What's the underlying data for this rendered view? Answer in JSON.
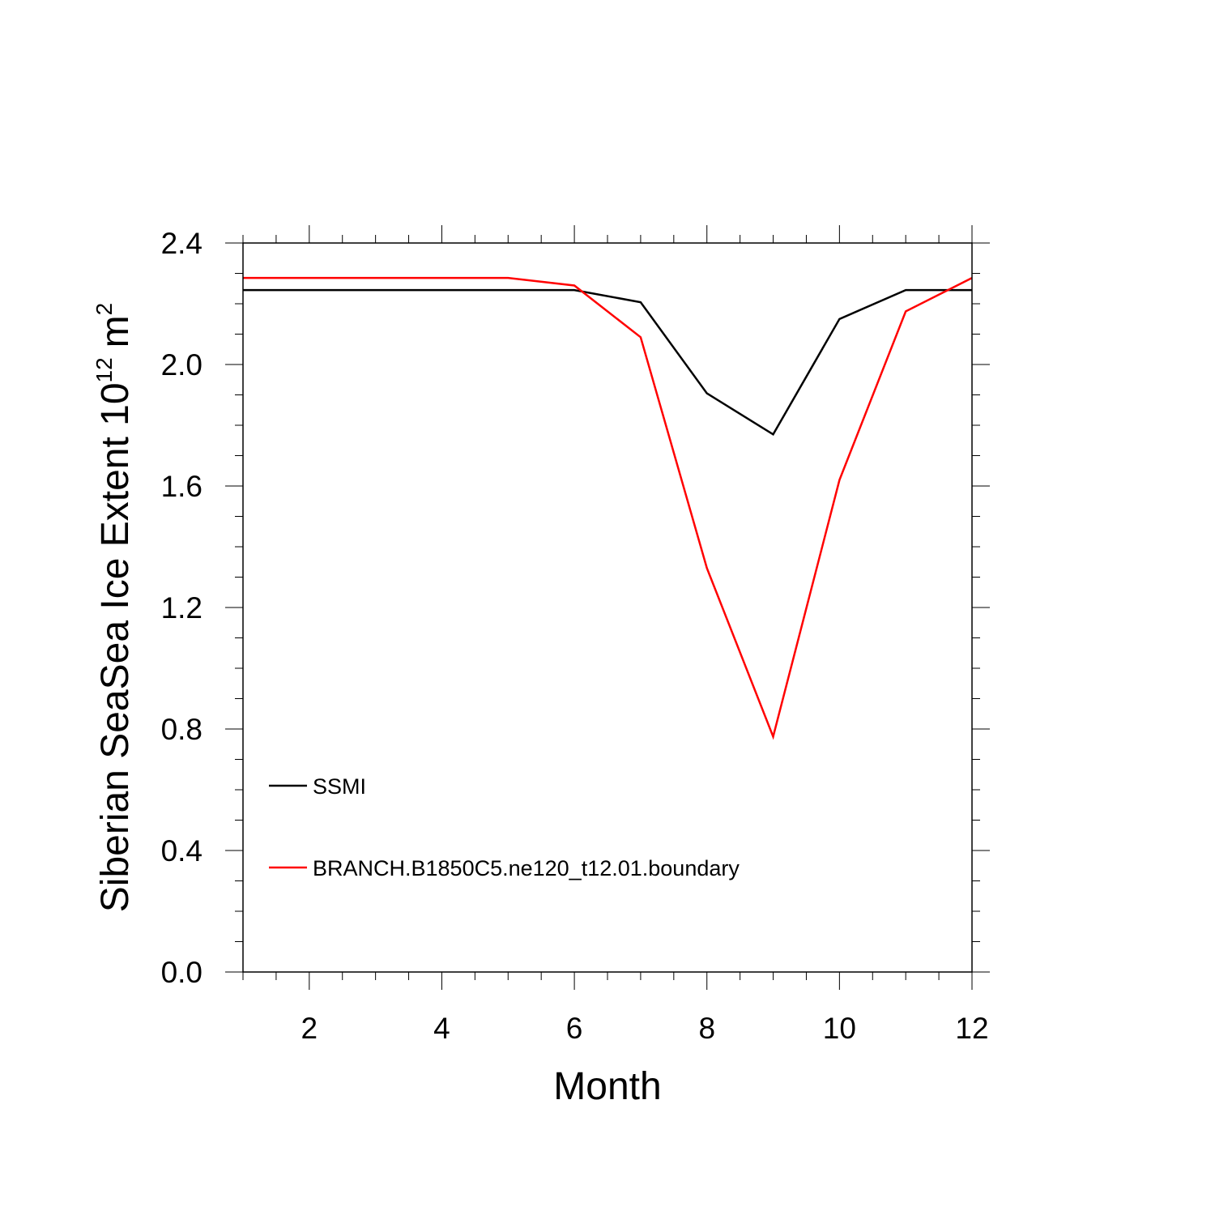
{
  "chart_data": {
    "type": "line",
    "xlabel": "Month",
    "ylabel": {
      "main": "Siberian SeaSea Ice Extent 10",
      "exponent": "12",
      "unit": "m",
      "unit_exponent": "2"
    },
    "xlim": [
      1,
      12
    ],
    "ylim": [
      0,
      2.4
    ],
    "x_ticks": [
      2,
      4,
      6,
      8,
      10,
      12
    ],
    "x_tick_labels": [
      "2",
      "4",
      "6",
      "8",
      "10",
      "12"
    ],
    "y_ticks": [
      0,
      0.4,
      0.8,
      1.2,
      1.6,
      2.0,
      2.4
    ],
    "y_tick_labels": [
      "0.0",
      "0.4",
      "0.8",
      "1.2",
      "1.6",
      "2.0",
      "2.4"
    ],
    "x": [
      1,
      2,
      3,
      4,
      5,
      6,
      7,
      8,
      9,
      10,
      11,
      12
    ],
    "series": [
      {
        "name": "SSMI",
        "color": "#000000",
        "values": [
          2.245,
          2.245,
          2.245,
          2.245,
          2.245,
          2.245,
          2.205,
          1.905,
          1.77,
          2.15,
          2.245,
          2.245
        ]
      },
      {
        "name": "BRANCH.B1850C5.ne120_t12.01.boundary",
        "color": "#ff0000",
        "values": [
          2.285,
          2.285,
          2.285,
          2.285,
          2.285,
          2.26,
          2.09,
          1.33,
          0.775,
          1.62,
          2.175,
          2.285
        ]
      }
    ],
    "legend": {
      "placement": "lower-left"
    },
    "grid": false
  }
}
